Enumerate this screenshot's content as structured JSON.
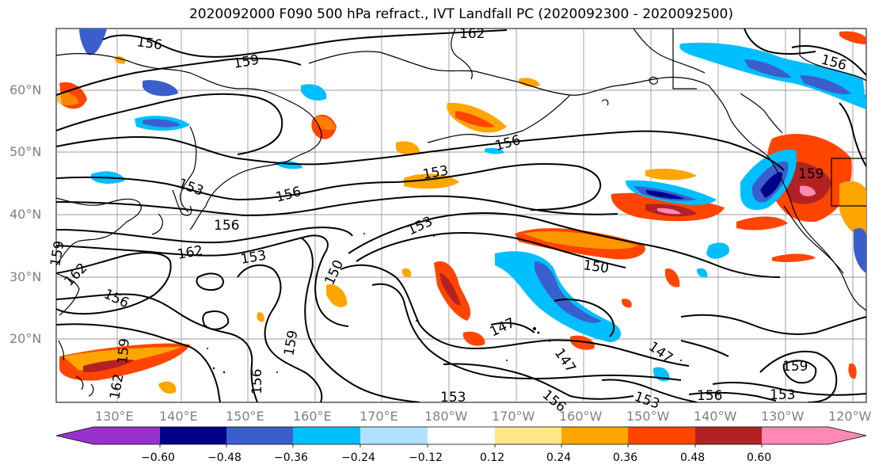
{
  "title": "2020092000 F090 500 hPa refract., IVT Landfall PC (2020092300 - 2020092500)",
  "lat_labels": [
    "60°N",
    "50°N",
    "40°N",
    "30°N",
    "20°N"
  ],
  "lon_labels": [
    "130°E",
    "140°E",
    "150°E",
    "160°E",
    "170°E",
    "180°W",
    "170°W",
    "160°W",
    "150°W",
    "140°W",
    "130°W",
    "120°W"
  ],
  "contour_labels": [
    "156",
    "159",
    "162",
    "156",
    "153",
    "156",
    "153",
    "159",
    "156",
    "162",
    "153",
    "153",
    "150",
    "150",
    "162",
    "156",
    "159",
    "156",
    "147",
    "147",
    "147",
    "159",
    "153",
    "156",
    "153",
    "159",
    "162",
    "156",
    "153",
    "159",
    "156"
  ],
  "colorbar": {
    "ticks": [
      "−0.60",
      "−0.48",
      "−0.36",
      "−0.24",
      "−0.12",
      "0.12",
      "0.24",
      "0.36",
      "0.48",
      "0.60"
    ],
    "colors": [
      "#9932CC",
      "#00008B",
      "#3A5FCD",
      "#00BFFF",
      "#B0E2FF",
      "#FFFFFF",
      "#FFE884",
      "#FFA500",
      "#FF4500",
      "#B22222",
      "#FF89B4"
    ]
  },
  "colors": {
    "grid": "#9a9a9a",
    "land": "#000000",
    "contour": "#000000",
    "axis_labels": "#808080"
  }
}
